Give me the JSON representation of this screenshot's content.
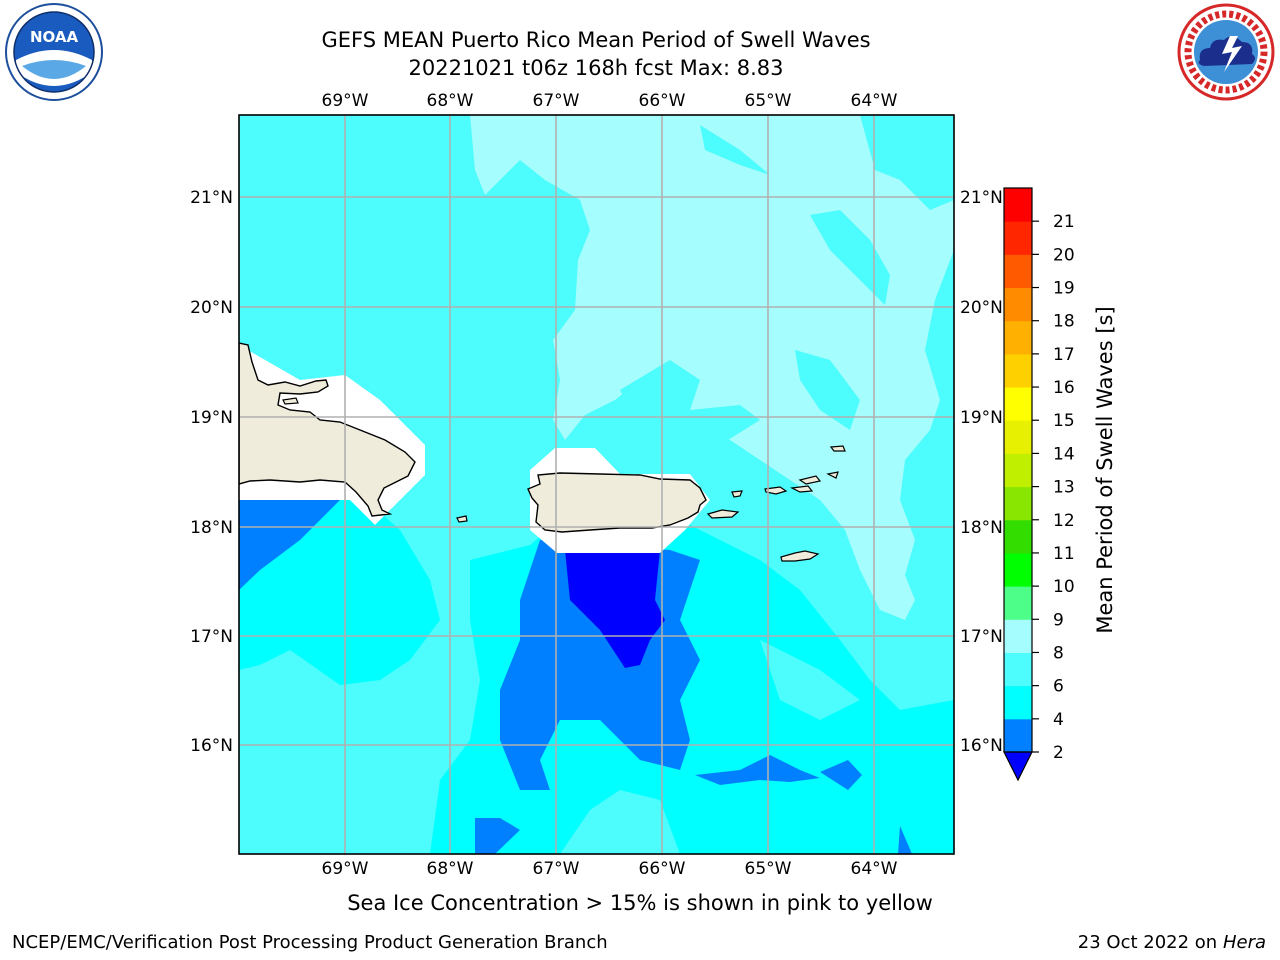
{
  "header": {
    "title_line1": "GEFS MEAN Puerto Rico Mean Period of Swell Waves",
    "title_line2": "20221021 t06z 168h fcst   Max: 8.83"
  },
  "logos": {
    "left": "noaa-logo",
    "left_text": "NOAA",
    "right": "nws-logo"
  },
  "map": {
    "lon_labels": [
      "69°W",
      "68°W",
      "67°W",
      "66°W",
      "65°W",
      "64°W"
    ],
    "lat_labels": [
      "21°N",
      "20°N",
      "19°N",
      "18°N",
      "17°N",
      "16°N"
    ],
    "land_color": "#efecdc",
    "grid_color": "#b0b0b0"
  },
  "colorbar": {
    "label": "Mean Period of Swell Waves [s]",
    "ticks": [
      "2",
      "4",
      "6",
      "8",
      "9",
      "10",
      "11",
      "12",
      "13",
      "14",
      "15",
      "16",
      "17",
      "18",
      "19",
      "20",
      "21"
    ],
    "extend_color": "#0000ff",
    "colors": [
      "#0080ff",
      "#00ffff",
      "#4dfcfc",
      "#a6fdfd",
      "#4dff88",
      "#00ff00",
      "#33dd00",
      "#88e600",
      "#c0f000",
      "#e6f000",
      "#ffff00",
      "#ffd000",
      "#ffb000",
      "#ff8c00",
      "#ff5a00",
      "#ff2600",
      "#ff0000"
    ]
  },
  "footer": {
    "note": "Sea Ice Concentration > 15% is shown in pink to yellow",
    "credit": "NCEP/EMC/Verification Post Processing Product Generation Branch",
    "date": "23 Oct 2022 on",
    "host": "Hera"
  }
}
